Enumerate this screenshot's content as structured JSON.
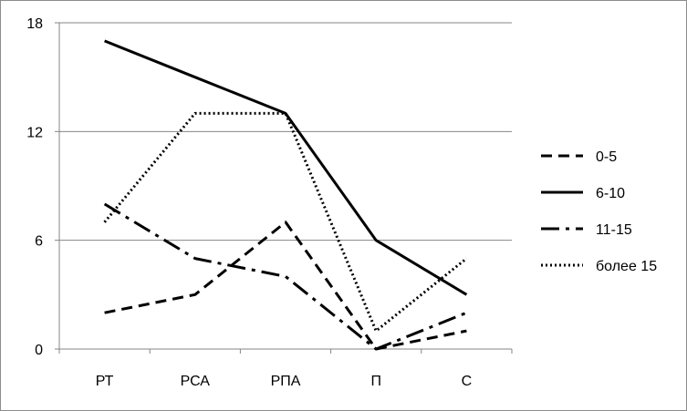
{
  "chart_data": {
    "type": "line",
    "categories": [
      "РТ",
      "РСА",
      "РПА",
      "П",
      "С"
    ],
    "ylim": [
      0,
      18
    ],
    "yticks": [
      0,
      6,
      12,
      18
    ],
    "grid": "horizontal",
    "legend_position": "right",
    "series": [
      {
        "name": "0-5",
        "values": [
          2,
          3,
          7,
          0,
          1
        ],
        "dash": "dashed",
        "color": "#000000"
      },
      {
        "name": "6-10",
        "values": [
          17,
          15,
          13,
          6,
          3
        ],
        "dash": "solid",
        "color": "#000000"
      },
      {
        "name": "11-15",
        "values": [
          8,
          5,
          4,
          0,
          2
        ],
        "dash": "dash-dot",
        "color": "#000000"
      },
      {
        "name": "более 15",
        "values": [
          7,
          13,
          13,
          1,
          5
        ],
        "dash": "dotted",
        "color": "#000000"
      }
    ],
    "title": "",
    "xlabel": "",
    "ylabel": ""
  },
  "colors": {
    "grid": "#868686",
    "axis": "#868686",
    "border": "#8c8c8c"
  }
}
